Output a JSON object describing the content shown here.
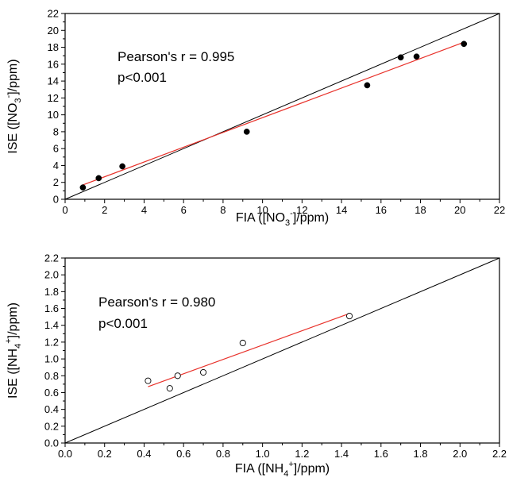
{
  "chart_data": [
    {
      "type": "scatter",
      "xlabel": "FIA ([NO3-]/ppm)",
      "ylabel": "ISE ([NO3-]/ppm)",
      "xlim": [
        0,
        22
      ],
      "ylim": [
        0,
        22
      ],
      "xticks": [
        "0",
        "2",
        "4",
        "6",
        "8",
        "10",
        "12",
        "14",
        "16",
        "18",
        "20",
        "22"
      ],
      "yticks": [
        "0",
        "2",
        "4",
        "6",
        "8",
        "10",
        "12",
        "14",
        "16",
        "18",
        "20",
        "22"
      ],
      "annotation_lines": [
        "Pearson's r = 0.995",
        "p<0.001"
      ],
      "marker": "filled-circle",
      "points": [
        {
          "x": 0.9,
          "y": 1.4
        },
        {
          "x": 1.7,
          "y": 2.5
        },
        {
          "x": 2.9,
          "y": 3.9
        },
        {
          "x": 9.2,
          "y": 8.0
        },
        {
          "x": 15.3,
          "y": 13.5
        },
        {
          "x": 17.0,
          "y": 16.8
        },
        {
          "x": 17.8,
          "y": 16.9
        },
        {
          "x": 20.2,
          "y": 18.4
        }
      ],
      "fit_line": {
        "x": [
          0.9,
          20.2
        ],
        "y": [
          1.7,
          18.6
        ],
        "color": "#e8312a"
      },
      "identity_line": {
        "x": [
          0,
          22
        ],
        "y": [
          0,
          22
        ],
        "color": "#000000"
      }
    },
    {
      "type": "scatter",
      "xlabel": "FIA ([NH4+]/ppm)",
      "ylabel": "ISE ([NH4+]/ppm)",
      "xlim": [
        0,
        2.2
      ],
      "ylim": [
        0,
        2.2
      ],
      "xticks": [
        "0.0",
        "0.2",
        "0.4",
        "0.6",
        "0.8",
        "1.0",
        "1.2",
        "1.4",
        "1.6",
        "1.8",
        "2.0",
        "2.2"
      ],
      "yticks": [
        "0.0",
        "0.2",
        "0.4",
        "0.6",
        "0.8",
        "1.0",
        "1.2",
        "1.4",
        "1.6",
        "1.8",
        "2.0",
        "2.2"
      ],
      "annotation_lines": [
        "Pearson's r = 0.980",
        "p<0.001"
      ],
      "marker": "open-circle",
      "points": [
        {
          "x": 0.42,
          "y": 0.74
        },
        {
          "x": 0.53,
          "y": 0.65
        },
        {
          "x": 0.57,
          "y": 0.8
        },
        {
          "x": 0.7,
          "y": 0.84
        },
        {
          "x": 0.9,
          "y": 1.19
        },
        {
          "x": 1.44,
          "y": 1.51
        }
      ],
      "fit_line": {
        "x": [
          0.42,
          1.44
        ],
        "y": [
          0.67,
          1.54
        ],
        "color": "#e8312a"
      },
      "identity_line": {
        "x": [
          0,
          2.2
        ],
        "y": [
          0,
          2.2
        ],
        "color": "#000000"
      }
    }
  ]
}
